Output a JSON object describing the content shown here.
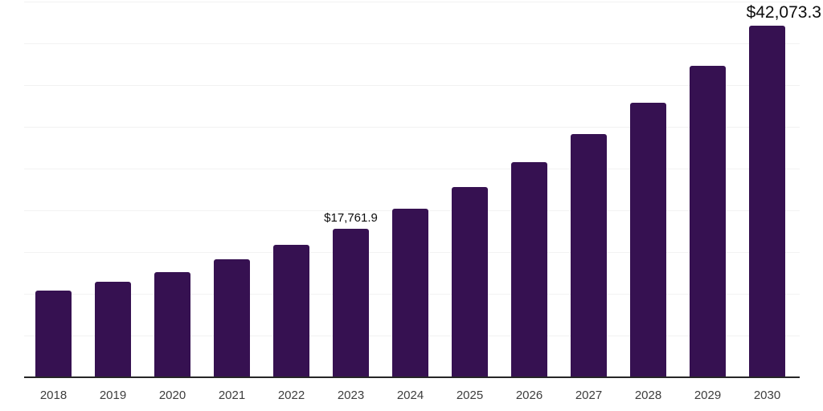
{
  "chart_data": {
    "type": "bar",
    "title": "",
    "xlabel": "",
    "ylabel": "",
    "categories": [
      "2018",
      "2019",
      "2020",
      "2021",
      "2022",
      "2023",
      "2024",
      "2025",
      "2026",
      "2027",
      "2028",
      "2029",
      "2030"
    ],
    "values": [
      10350,
      11450,
      12600,
      14100,
      15850,
      17761.9,
      20150,
      22800,
      25790,
      29150,
      32900,
      37330,
      42073.3
    ],
    "data_labels": [
      {
        "category": "2023",
        "text": "$17,761.9",
        "emphasis": false
      },
      {
        "category": "2030",
        "text": "$42,073.3",
        "emphasis": true
      }
    ],
    "ylim": [
      0,
      45000
    ],
    "gridline_step": 5000,
    "grid": true,
    "legend_position": "none",
    "colors": {
      "bar": "#361151",
      "gridline": "#f2f2f2",
      "axis_line": "#262626",
      "tick_label": "#3d3d3d",
      "data_label": "#0d0d0d"
    }
  }
}
